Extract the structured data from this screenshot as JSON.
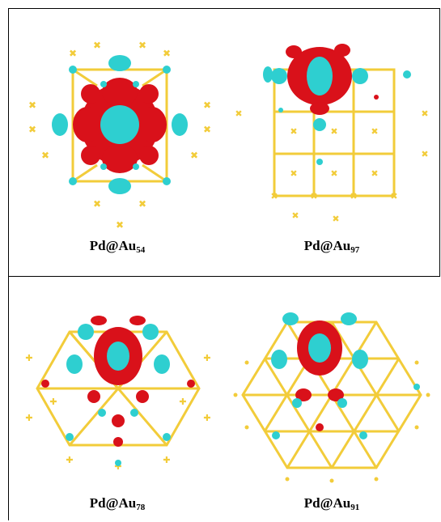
{
  "panels": [
    {
      "id": "pd-au54",
      "label_main": "Pd@Au",
      "label_sub": "54"
    },
    {
      "id": "pd-au97",
      "label_main": "Pd@Au",
      "label_sub": "97"
    },
    {
      "id": "pd-au78",
      "label_main": "Pd@Au",
      "label_sub": "78"
    },
    {
      "id": "pd-au91",
      "label_main": "Pd@Au",
      "label_sub": "91"
    }
  ],
  "colors": {
    "lattice": "#f2cc3a",
    "negative_lobe": "#d9111a",
    "positive_lobe": "#2ecfd0",
    "frame": "#000000"
  }
}
